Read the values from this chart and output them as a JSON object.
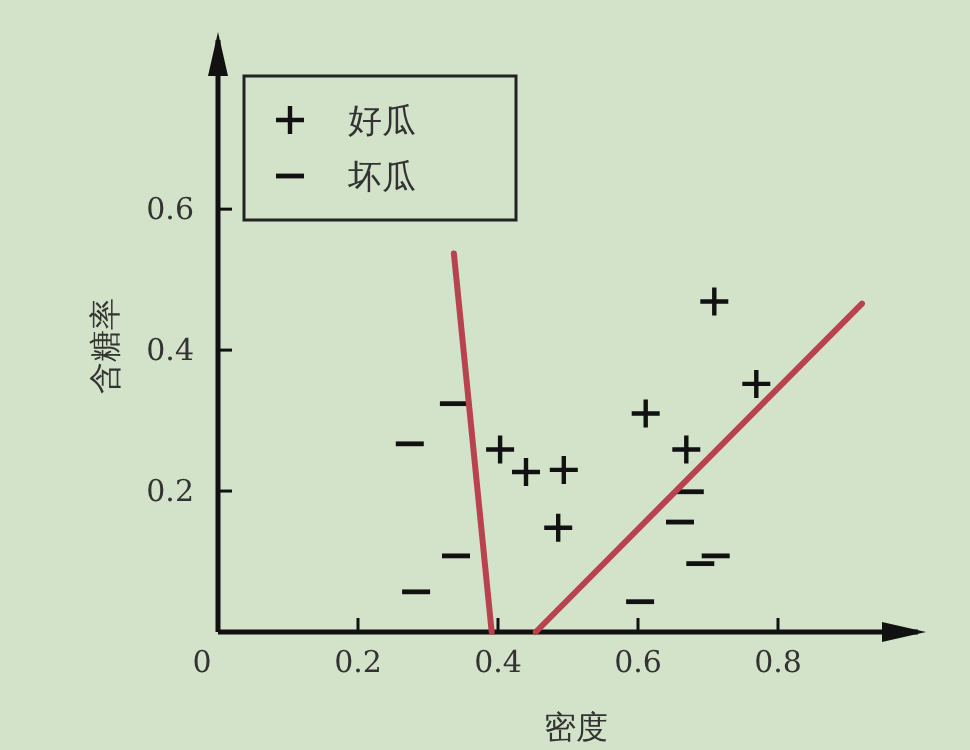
{
  "chart_data": {
    "type": "scatter",
    "xlabel": "密度",
    "ylabel": "含糖率",
    "xlim": [
      0,
      1.0
    ],
    "ylim": [
      0,
      0.84
    ],
    "xticks": [
      {
        "value": 0,
        "label": "0"
      },
      0.2,
      0.4,
      0.6,
      0.8
    ],
    "yticks": [
      0.2,
      0.4,
      0.6
    ],
    "legend": "top left",
    "grid": false,
    "series": [
      {
        "name": "好瓜",
        "type": "scatter",
        "marker": "cross",
        "color": "#111111",
        "x": [
          0.403,
          0.44,
          0.494,
          0.486,
          0.611,
          0.669,
          0.709,
          0.769
        ],
        "values": [
          0.259,
          0.227,
          0.23,
          0.148,
          0.31,
          0.259,
          0.469,
          0.352
        ]
      },
      {
        "name": "坏瓜",
        "type": "scatter",
        "color": "#111111",
        "x": [
          0.274,
          0.337,
          0.34,
          0.283,
          0.674,
          0.66,
          0.689,
          0.711,
          0.603
        ],
        "values": [
          0.267,
          0.324,
          0.108,
          0.057,
          0.199,
          0.156,
          0.097,
          0.108,
          0.043
        ]
      },
      {
        "type": "line",
        "marker": "none",
        "color": "#b8434e",
        "x": [
          0.337,
          0.391
        ],
        "values": [
          0.537,
          0
        ]
      },
      {
        "type": "line",
        "marker": "none",
        "color": "#b8434e",
        "x": [
          0.454,
          0.92
        ],
        "values": [
          0,
          0.466
        ]
      }
    ]
  }
}
